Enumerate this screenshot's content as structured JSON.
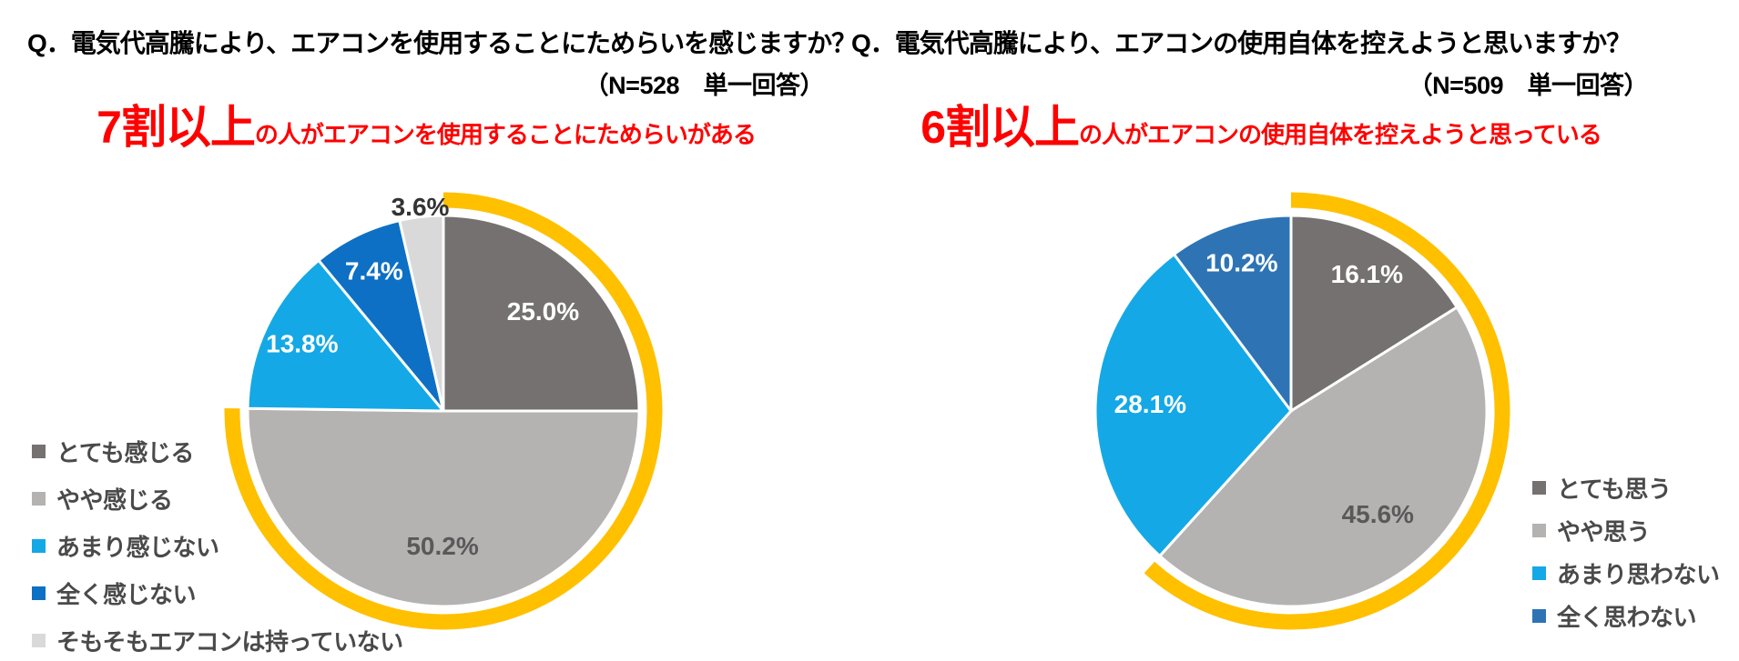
{
  "page": {
    "background_color": "#ffffff",
    "question_text_color": "#000000"
  },
  "chart_data": [
    {
      "type": "pie",
      "question_line1": "Q．電気代高騰により、エアコンを使用することにためらいを感じますか？",
      "question_line2": "（N=528　単一回答）",
      "n": 528,
      "headline_emphasis": "7割以上",
      "headline_rest": "の人がエアコンを使用することにためらいがある",
      "headline_color": "#ff0000",
      "slices": [
        {
          "label": "とても感じる",
          "value": 25.0,
          "value_label": "25.0%",
          "color": "#767171",
          "value_label_color": "#ffffff"
        },
        {
          "label": "やや感じる",
          "value": 50.2,
          "value_label": "50.2%",
          "color": "#b5b2b2",
          "value_label_color": "#595959"
        },
        {
          "label": "あまり感じない",
          "value": 13.8,
          "value_label": "13.8%",
          "color": "#14a8e6",
          "value_label_color": "#ffffff"
        },
        {
          "label": "全く感じない",
          "value": 7.4,
          "value_label": "7.4%",
          "color": "#0d70c4",
          "value_label_color": "#ffffff"
        },
        {
          "label": "そもそもエアコンは持っていない",
          "value": 3.6,
          "value_label": "3.6%",
          "color": "#d9d9d9",
          "value_label_color": "#333333"
        }
      ],
      "highlight_arc": {
        "color": "#ffc000",
        "covers_percent": 75.2
      },
      "legend_side": "left"
    },
    {
      "type": "pie",
      "question_line1": "Q．電気代高騰により、エアコンの使用自体を控えようと思いますか？",
      "question_line2": "（N=509　単一回答）",
      "n": 509,
      "headline_emphasis": "6割以上",
      "headline_rest": "の人がエアコンの使用自体を控えようと思っている",
      "headline_color": "#ff0000",
      "slices": [
        {
          "label": "とても思う",
          "value": 16.1,
          "value_label": "16.1%",
          "color": "#767171",
          "value_label_color": "#ffffff"
        },
        {
          "label": "やや思う",
          "value": 45.6,
          "value_label": "45.6%",
          "color": "#b5b2b2",
          "value_label_color": "#595959"
        },
        {
          "label": "あまり思わない",
          "value": 28.1,
          "value_label": "28.1%",
          "color": "#14a8e6",
          "value_label_color": "#ffffff"
        },
        {
          "label": "全く思わない",
          "value": 10.2,
          "value_label": "10.2%",
          "color": "#2e74b5",
          "value_label_color": "#ffffff"
        }
      ],
      "highlight_arc": {
        "color": "#ffc000",
        "covers_percent": 61.7
      },
      "legend_side": "right"
    }
  ]
}
